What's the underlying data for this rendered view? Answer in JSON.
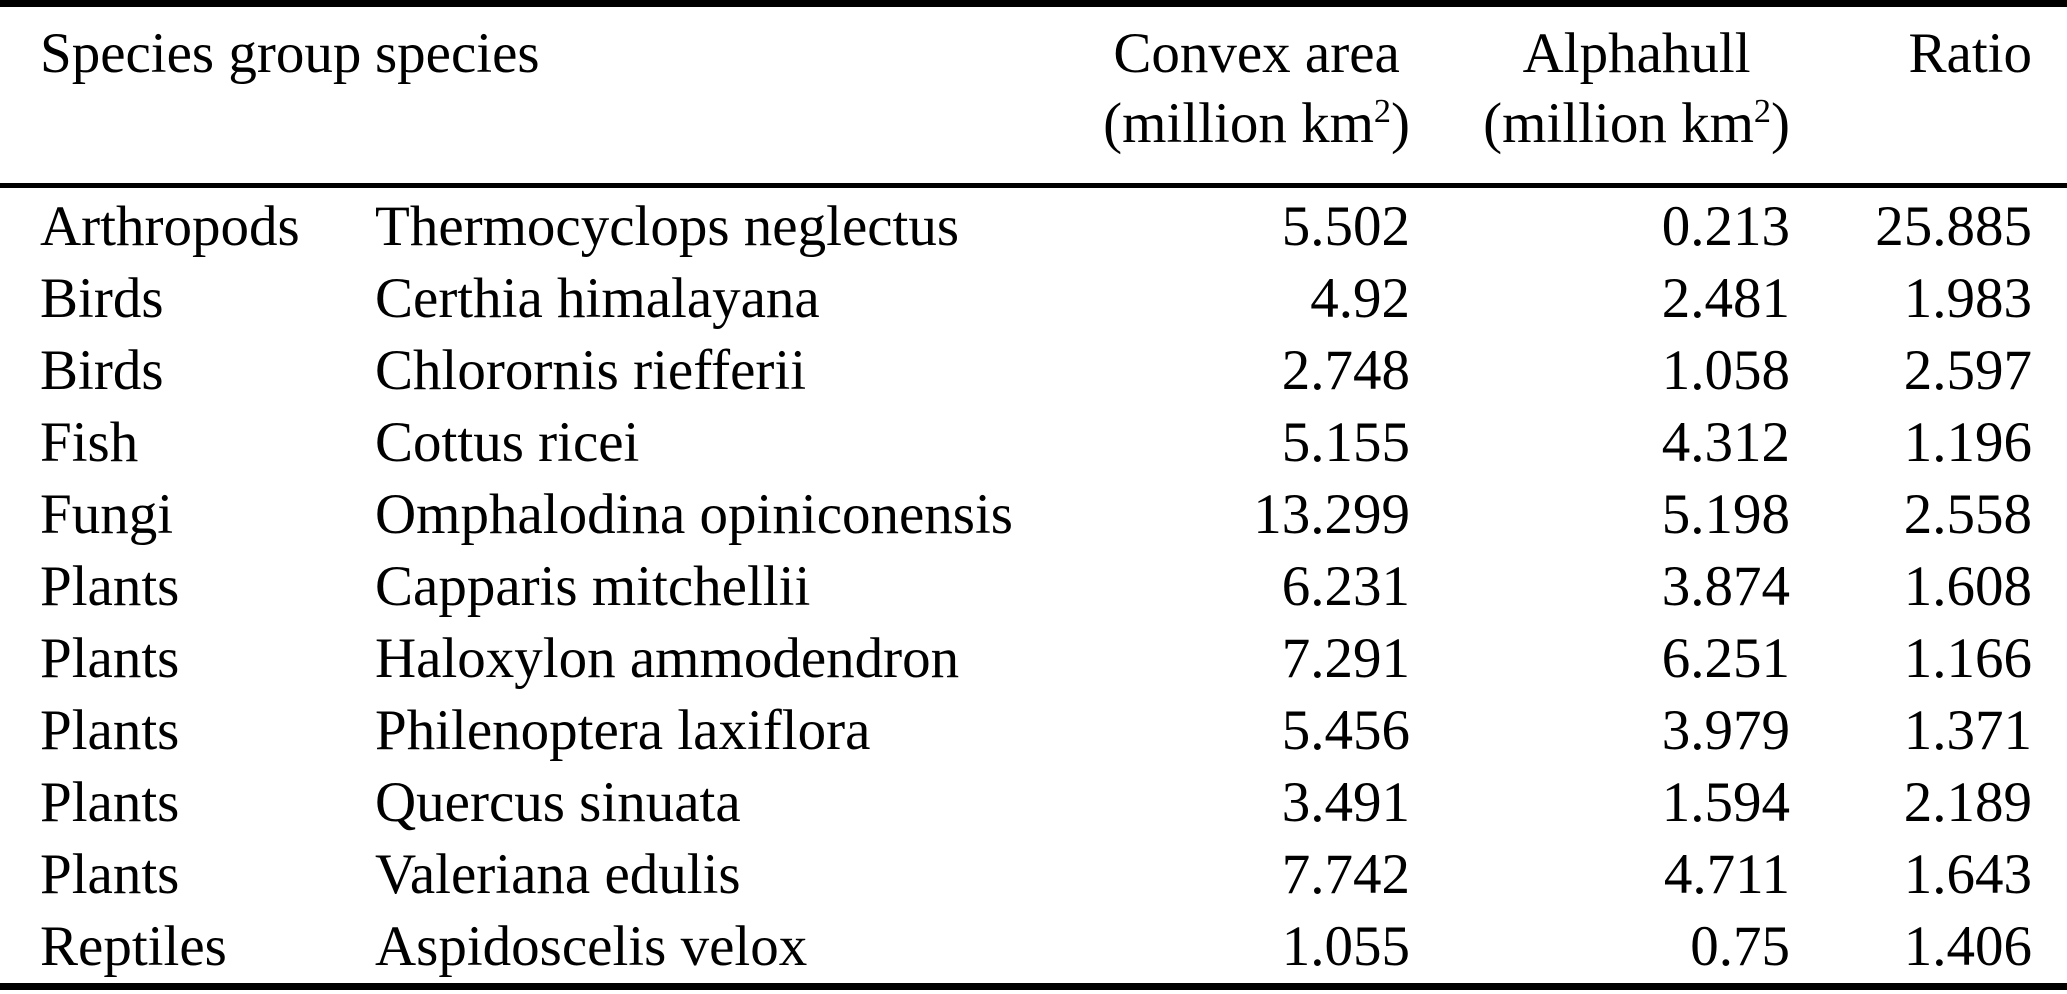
{
  "page": {
    "background_color": "#ffffff",
    "text_color": "#000000",
    "rule_color": "#000000"
  },
  "table": {
    "header": {
      "group_line1": "Species",
      "group_line2": "group",
      "species": "species",
      "convex_label": "Convex area",
      "alphahull_label": "Alphahull",
      "unit_prefix": "(million km",
      "unit_sup": "2",
      "unit_suffix": ")",
      "ratio": "Ratio"
    },
    "rows": [
      {
        "group": "Arthropods",
        "species": "Thermocyclops neglectus",
        "convex_area": "5.502",
        "alphahull": "0.213",
        "ratio": "25.885"
      },
      {
        "group": "Birds",
        "species": "Certhia himalayana",
        "convex_area": "4.92",
        "alphahull": "2.481",
        "ratio": "1.983"
      },
      {
        "group": "Birds",
        "species": "Chlorornis riefferii",
        "convex_area": "2.748",
        "alphahull": "1.058",
        "ratio": "2.597"
      },
      {
        "group": "Fish",
        "species": "Cottus ricei",
        "convex_area": "5.155",
        "alphahull": "4.312",
        "ratio": "1.196"
      },
      {
        "group": "Fungi",
        "species": "Omphalodina opiniconensis",
        "convex_area": "13.299",
        "alphahull": "5.198",
        "ratio": "2.558"
      },
      {
        "group": "Plants",
        "species": "Capparis mitchellii",
        "convex_area": "6.231",
        "alphahull": "3.874",
        "ratio": "1.608"
      },
      {
        "group": "Plants",
        "species": "Haloxylon ammodendron",
        "convex_area": "7.291",
        "alphahull": "6.251",
        "ratio": "1.166"
      },
      {
        "group": "Plants",
        "species": "Philenoptera laxiflora",
        "convex_area": "5.456",
        "alphahull": "3.979",
        "ratio": "1.371"
      },
      {
        "group": "Plants",
        "species": "Quercus sinuata",
        "convex_area": "3.491",
        "alphahull": "1.594",
        "ratio": "2.189"
      },
      {
        "group": "Plants",
        "species": "Valeriana edulis",
        "convex_area": "7.742",
        "alphahull": "4.711",
        "ratio": "1.643"
      },
      {
        "group": "Reptiles",
        "species": "Aspidoscelis velox",
        "convex_area": "1.055",
        "alphahull": "0.75",
        "ratio": "1.406"
      }
    ]
  }
}
